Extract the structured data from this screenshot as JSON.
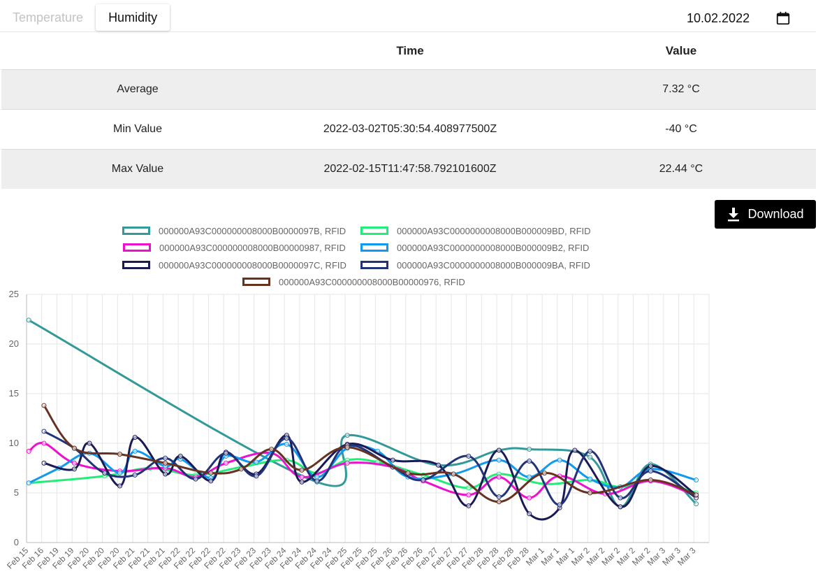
{
  "tabs": [
    {
      "label": "Temperature",
      "active": false
    },
    {
      "label": "Humidity",
      "active": true
    }
  ],
  "date_field": {
    "value": "10.02.2022",
    "icon": "calendar-icon"
  },
  "table": {
    "headers": [
      "",
      "Time",
      "Value"
    ],
    "rows": [
      {
        "label": "Average",
        "time": "",
        "value": "7.32 °C"
      },
      {
        "label": "Min Value",
        "time": "2022-03-02T05:30:54.408977500Z",
        "value": "-40 °C"
      },
      {
        "label": "Max Value",
        "time": "2022-02-15T11:47:58.792101600Z",
        "value": "22.44 °C"
      }
    ]
  },
  "download_button": {
    "label": "Download",
    "icon": "download-icon"
  },
  "chart_data": {
    "type": "line",
    "title": "",
    "xlabel": "",
    "ylabel": "",
    "ylim": [
      0,
      25
    ],
    "yticks": [
      0,
      5,
      10,
      15,
      20,
      25
    ],
    "grid": true,
    "legend_position": "top",
    "x": [
      "Feb 15",
      "Feb 16",
      "Feb 19",
      "Feb 19",
      "Feb 20",
      "Feb 20",
      "Feb 20",
      "Feb 21",
      "Feb 21",
      "Feb 21",
      "Feb 22",
      "Feb 22",
      "Feb 22",
      "Feb 22",
      "Feb 23",
      "Feb 23",
      "Feb 23",
      "Feb 24",
      "Feb 24",
      "Feb 24",
      "Feb 24",
      "Feb 25",
      "Feb 25",
      "Feb 25",
      "Feb 26",
      "Feb 26",
      "Feb 26",
      "Feb 27",
      "Feb 27",
      "Feb 27",
      "Feb 28",
      "Feb 28",
      "Feb 28",
      "Feb 28",
      "Mar 1",
      "Mar 1",
      "Mar 1",
      "Mar 2",
      "Mar 2",
      "Mar 2",
      "Mar 2",
      "Mar 2",
      "Mar 3",
      "Mar 3",
      "Mar 3"
    ],
    "series": [
      {
        "name": "000000A93C000000008000B0000097B, RFID",
        "color": "#339999",
        "values": [
          22.4,
          null,
          null,
          null,
          null,
          null,
          null,
          null,
          null,
          null,
          null,
          null,
          null,
          null,
          null,
          null,
          null,
          null,
          null,
          6.1,
          null,
          10.8,
          null,
          null,
          null,
          null,
          null,
          7.8,
          null,
          null,
          null,
          9.3,
          null,
          9.4,
          null,
          null,
          null,
          8.6,
          null,
          3.6,
          null,
          7.9,
          null,
          null,
          3.9
        ]
      },
      {
        "name": "000000A93C0000000008000B000009BD, RFID",
        "color": "#22ee77",
        "values": [
          6.0,
          null,
          null,
          null,
          null,
          6.7,
          null,
          null,
          7.5,
          null,
          null,
          6.8,
          null,
          null,
          7.6,
          null,
          null,
          8.3,
          null,
          7.0,
          null,
          8.3,
          null,
          8.1,
          null,
          null,
          6.8,
          null,
          null,
          5.5,
          null,
          6.9,
          null,
          null,
          5.9,
          null,
          null,
          6.3,
          null,
          5.6,
          null,
          6.3,
          null,
          null,
          5.0
        ]
      },
      {
        "name": "000000A93C000000008000B00000987, RFID",
        "color": "#ee11cc",
        "values": [
          9.2,
          10.0,
          null,
          8.0,
          null,
          null,
          7.2,
          null,
          null,
          7.5,
          null,
          6.6,
          null,
          8.0,
          null,
          null,
          9.0,
          null,
          6.6,
          null,
          null,
          8.0,
          null,
          null,
          7.6,
          null,
          6.2,
          null,
          null,
          4.8,
          null,
          6.6,
          null,
          4.5,
          null,
          6.7,
          null,
          null,
          4.9,
          null,
          null,
          6.2,
          null,
          null,
          4.7
        ]
      },
      {
        "name": "000000A93C0000000008000B000009B2, RFID",
        "color": "#1199ee",
        "values": [
          6.0,
          null,
          7.5,
          null,
          9.0,
          null,
          7.0,
          9.2,
          null,
          7.7,
          8.4,
          null,
          6.5,
          8.7,
          null,
          8.1,
          null,
          9.9,
          null,
          6.6,
          null,
          9.5,
          null,
          9.2,
          null,
          6.6,
          null,
          null,
          6.9,
          null,
          null,
          8.3,
          null,
          6.6,
          null,
          8.3,
          null,
          6.4,
          null,
          5.6,
          null,
          7.4,
          null,
          null,
          6.3
        ]
      },
      {
        "name": "000000A93C000000008000B0000097C, RFID",
        "color": "#1a1a55",
        "values": [
          null,
          8.0,
          null,
          7.4,
          10.0,
          null,
          5.7,
          10.6,
          null,
          6.9,
          8.7,
          null,
          6.2,
          9.1,
          null,
          6.9,
          null,
          10.8,
          6.1,
          null,
          null,
          9.9,
          null,
          null,
          8.3,
          null,
          null,
          7.8,
          null,
          3.7,
          null,
          9.3,
          null,
          2.9,
          null,
          3.5,
          9.3,
          null,
          null,
          3.6,
          null,
          7.7,
          null,
          null,
          4.8
        ]
      },
      {
        "name": "000000A93C0000000008000B000009BA, RFID",
        "color": "#223377",
        "values": [
          null,
          11.2,
          null,
          9.5,
          null,
          7.0,
          null,
          6.8,
          null,
          8.5,
          null,
          6.4,
          null,
          9.0,
          null,
          6.7,
          null,
          10.5,
          null,
          6.2,
          null,
          9.8,
          null,
          null,
          7.6,
          null,
          6.3,
          null,
          null,
          8.7,
          null,
          4.6,
          null,
          8.2,
          null,
          3.8,
          null,
          9.2,
          null,
          4.5,
          null,
          7.2,
          null,
          null,
          4.5
        ]
      },
      {
        "name": "000000A93C000000008000B00000976, RFID",
        "color": "#663322",
        "values": [
          null,
          13.8,
          null,
          9.5,
          null,
          null,
          8.9,
          null,
          null,
          8.0,
          null,
          null,
          7.0,
          null,
          7.4,
          null,
          9.4,
          null,
          7.3,
          null,
          null,
          9.6,
          null,
          null,
          null,
          7.0,
          null,
          null,
          6.9,
          null,
          null,
          4.1,
          null,
          null,
          7.0,
          null,
          null,
          5.0,
          null,
          null,
          null,
          6.3,
          null,
          null,
          4.8
        ]
      }
    ]
  }
}
